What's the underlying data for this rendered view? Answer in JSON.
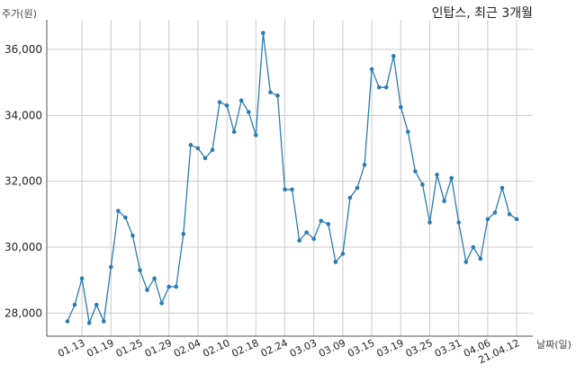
{
  "chart_data": {
    "type": "line",
    "title": "인탑스, 최근 3개월",
    "ylabel": "주가(원)",
    "xlabel": "날짜(일)",
    "ylim": [
      27300,
      36900
    ],
    "yticks": [
      28000,
      30000,
      32000,
      34000,
      36000
    ],
    "ytick_labels": [
      "28,000",
      "30,000",
      "32,000",
      "34,000",
      "36,000"
    ],
    "xtick_labels": [
      "01.13",
      "01.19",
      "01.25",
      "01.29",
      "02.04",
      "02.10",
      "02.18",
      "02.24",
      "03.03",
      "03.09",
      "03.15",
      "03.19",
      "03.25",
      "03.31",
      "04.06",
      "21.04.12"
    ],
    "xtick_index": [
      2,
      6,
      10,
      14,
      18,
      22,
      26,
      30,
      34,
      38,
      42,
      46,
      50,
      54,
      58,
      62
    ],
    "grid": true,
    "color": "#2b7bb0",
    "series": [
      {
        "values": [
          27750,
          28250,
          29050,
          27700,
          28250,
          27750,
          29400,
          31100,
          30900,
          30350,
          29300,
          28700,
          29050,
          28300,
          28800,
          28800,
          30400,
          33100,
          33000,
          32700,
          32950,
          34400,
          34300,
          33500,
          34450,
          34100,
          33400,
          36500,
          34700,
          34600,
          31750,
          31750,
          30200,
          30450,
          30250,
          30800,
          30700,
          29550,
          29800,
          31500,
          31800,
          32500,
          35400,
          34850,
          34850,
          35800,
          34250,
          33500,
          32300,
          31900,
          30750,
          32200,
          31400,
          32100,
          30750,
          29550,
          30000,
          29650,
          30850,
          31050,
          31800,
          31000,
          30850
        ]
      }
    ]
  }
}
